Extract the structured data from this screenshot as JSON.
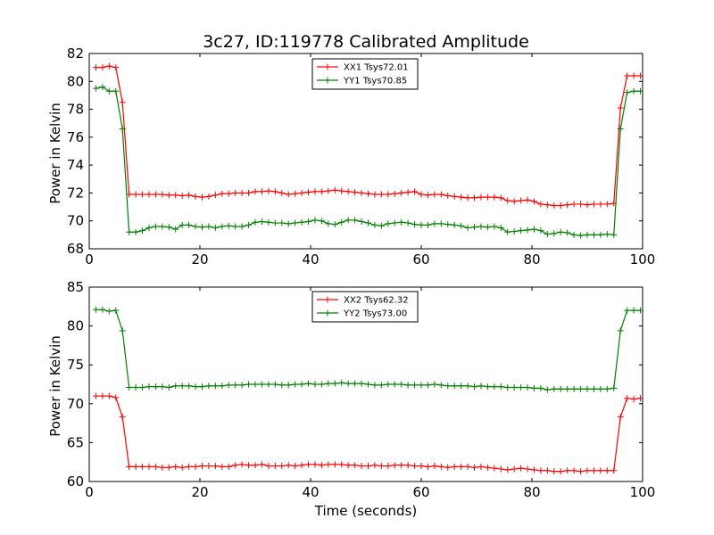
{
  "chart_data": [
    {
      "type": "line",
      "title": "3c27, ID:119778 Calibrated Amplitude",
      "xlabel": "",
      "ylabel": "Power in Kelvin",
      "xlim": [
        0,
        100
      ],
      "ylim": [
        68,
        82
      ],
      "xticks": [
        0,
        20,
        40,
        60,
        80,
        100
      ],
      "yticks": [
        68,
        70,
        72,
        74,
        76,
        78,
        80,
        82
      ],
      "legend": "top-center",
      "x": [
        1.2,
        2.4,
        3.6,
        4.8,
        6.0,
        7.2,
        8.4,
        9.6,
        10.8,
        12.0,
        13.2,
        14.4,
        15.6,
        16.8,
        18.0,
        19.2,
        20.4,
        21.6,
        22.8,
        24.0,
        25.2,
        26.4,
        27.6,
        28.8,
        30.0,
        31.2,
        32.4,
        33.6,
        34.8,
        36.0,
        37.2,
        38.4,
        39.6,
        40.8,
        42.0,
        43.2,
        44.4,
        45.6,
        46.8,
        48.0,
        49.2,
        50.4,
        51.6,
        52.8,
        54.0,
        55.2,
        56.4,
        57.6,
        58.8,
        60.0,
        61.2,
        62.4,
        63.6,
        64.8,
        66.0,
        67.2,
        68.4,
        69.6,
        70.8,
        72.0,
        73.2,
        74.4,
        75.6,
        76.8,
        78.0,
        79.2,
        80.4,
        81.6,
        82.8,
        84.0,
        85.2,
        86.4,
        87.6,
        88.8,
        90.0,
        91.2,
        92.4,
        93.6,
        94.8,
        96.0,
        97.2,
        98.4,
        99.6
      ],
      "series": [
        {
          "name": "XX1 Tsys72.01",
          "color": "#ff0000",
          "values": [
            81.0,
            81.0,
            81.1,
            81.0,
            78.5,
            71.9,
            71.9,
            71.9,
            71.9,
            71.9,
            71.9,
            71.85,
            71.85,
            71.8,
            71.85,
            71.75,
            71.7,
            71.75,
            71.85,
            71.95,
            71.95,
            72.0,
            72.0,
            72.0,
            72.1,
            72.1,
            72.15,
            72.1,
            72.0,
            71.9,
            71.95,
            72.0,
            72.05,
            72.1,
            72.1,
            72.15,
            72.2,
            72.15,
            72.1,
            72.05,
            72.0,
            71.95,
            71.9,
            71.9,
            71.9,
            71.95,
            72.0,
            72.05,
            72.1,
            71.9,
            71.85,
            71.9,
            71.9,
            71.8,
            71.75,
            71.7,
            71.65,
            71.65,
            71.7,
            71.7,
            71.7,
            71.65,
            71.45,
            71.4,
            71.45,
            71.5,
            71.4,
            71.2,
            71.15,
            71.1,
            71.1,
            71.15,
            71.2,
            71.2,
            71.15,
            71.2,
            71.2,
            71.2,
            71.25,
            78.1,
            80.4,
            80.4,
            80.4
          ]
        },
        {
          "name": "YY1 Tsys70.85",
          "color": "#008000",
          "values": [
            79.5,
            79.6,
            79.3,
            79.3,
            76.6,
            69.2,
            69.2,
            69.3,
            69.5,
            69.6,
            69.6,
            69.55,
            69.4,
            69.7,
            69.7,
            69.6,
            69.55,
            69.6,
            69.5,
            69.6,
            69.65,
            69.6,
            69.6,
            69.7,
            69.9,
            69.95,
            69.9,
            69.85,
            69.85,
            69.8,
            69.85,
            69.9,
            69.95,
            70.05,
            70.0,
            69.8,
            69.75,
            69.9,
            70.05,
            70.05,
            69.95,
            69.85,
            69.7,
            69.65,
            69.8,
            69.85,
            69.9,
            69.85,
            69.75,
            69.7,
            69.7,
            69.8,
            69.8,
            69.75,
            69.7,
            69.65,
            69.5,
            69.55,
            69.6,
            69.55,
            69.6,
            69.5,
            69.2,
            69.25,
            69.3,
            69.35,
            69.4,
            69.3,
            69.05,
            69.1,
            69.2,
            69.15,
            69.0,
            68.95,
            69.0,
            69.0,
            69.0,
            69.05,
            69.0,
            76.6,
            79.2,
            79.3,
            79.3
          ]
        }
      ]
    },
    {
      "type": "line",
      "title": "",
      "xlabel": "Time (seconds)",
      "ylabel": "Power in Kelvin",
      "xlim": [
        0,
        100
      ],
      "ylim": [
        60,
        85
      ],
      "xticks": [
        0,
        20,
        40,
        60,
        80,
        100
      ],
      "yticks": [
        60,
        65,
        70,
        75,
        80,
        85
      ],
      "legend": "top-center",
      "x": [
        1.2,
        2.4,
        3.6,
        4.8,
        6.0,
        7.2,
        8.4,
        9.6,
        10.8,
        12.0,
        13.2,
        14.4,
        15.6,
        16.8,
        18.0,
        19.2,
        20.4,
        21.6,
        22.8,
        24.0,
        25.2,
        26.4,
        27.6,
        28.8,
        30.0,
        31.2,
        32.4,
        33.6,
        34.8,
        36.0,
        37.2,
        38.4,
        39.6,
        40.8,
        42.0,
        43.2,
        44.4,
        45.6,
        46.8,
        48.0,
        49.2,
        50.4,
        51.6,
        52.8,
        54.0,
        55.2,
        56.4,
        57.6,
        58.8,
        60.0,
        61.2,
        62.4,
        63.6,
        64.8,
        66.0,
        67.2,
        68.4,
        69.6,
        70.8,
        72.0,
        73.2,
        74.4,
        75.6,
        76.8,
        78.0,
        79.2,
        80.4,
        81.6,
        82.8,
        84.0,
        85.2,
        86.4,
        87.6,
        88.8,
        90.0,
        91.2,
        92.4,
        93.6,
        94.8,
        96.0,
        97.2,
        98.4,
        99.6
      ],
      "series": [
        {
          "name": "XX2 Tsys62.32",
          "color": "#ff0000",
          "values": [
            71.0,
            71.0,
            71.0,
            70.8,
            68.3,
            61.9,
            61.9,
            61.9,
            61.9,
            61.9,
            61.8,
            61.8,
            61.9,
            61.8,
            61.9,
            61.9,
            62.0,
            62.0,
            62.0,
            61.9,
            61.9,
            62.1,
            62.2,
            62.1,
            62.1,
            62.2,
            62.0,
            62.0,
            62.0,
            62.1,
            62.0,
            62.1,
            62.2,
            62.2,
            62.1,
            62.2,
            62.2,
            62.2,
            62.1,
            62.1,
            62.0,
            62.0,
            62.1,
            62.0,
            62.0,
            62.1,
            62.1,
            62.1,
            62.0,
            62.0,
            61.9,
            62.0,
            61.9,
            61.8,
            61.9,
            61.9,
            61.9,
            61.8,
            61.9,
            61.8,
            61.7,
            61.6,
            61.5,
            61.6,
            61.7,
            61.6,
            61.5,
            61.4,
            61.4,
            61.3,
            61.3,
            61.4,
            61.4,
            61.3,
            61.4,
            61.4,
            61.4,
            61.4,
            61.4,
            68.3,
            70.7,
            70.6,
            70.7
          ]
        },
        {
          "name": "YY2 Tsys73.00",
          "color": "#008000",
          "values": [
            82.1,
            82.1,
            81.9,
            82.0,
            79.4,
            72.1,
            72.1,
            72.1,
            72.2,
            72.2,
            72.2,
            72.1,
            72.3,
            72.3,
            72.3,
            72.2,
            72.2,
            72.3,
            72.3,
            72.3,
            72.4,
            72.4,
            72.4,
            72.5,
            72.5,
            72.5,
            72.5,
            72.5,
            72.4,
            72.4,
            72.5,
            72.5,
            72.6,
            72.5,
            72.5,
            72.6,
            72.6,
            72.7,
            72.6,
            72.6,
            72.6,
            72.5,
            72.4,
            72.4,
            72.5,
            72.5,
            72.5,
            72.4,
            72.4,
            72.4,
            72.4,
            72.5,
            72.4,
            72.3,
            72.3,
            72.3,
            72.3,
            72.2,
            72.3,
            72.2,
            72.2,
            72.2,
            72.1,
            72.1,
            72.1,
            72.1,
            72.0,
            72.0,
            71.8,
            71.9,
            71.9,
            71.9,
            71.9,
            71.9,
            71.9,
            71.9,
            71.9,
            71.9,
            72.0,
            79.4,
            82.0,
            82.0,
            82.0
          ]
        }
      ]
    }
  ]
}
